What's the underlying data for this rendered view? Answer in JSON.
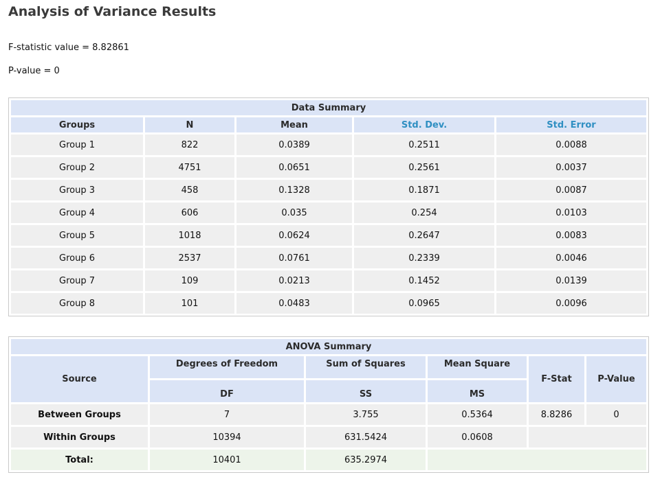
{
  "page": {
    "title": "Analysis of Variance Results",
    "f_statistic_line": "F-statistic value = 8.82861",
    "p_value_line": "P-value = 0"
  },
  "data_summary": {
    "caption": "Data Summary",
    "headers": [
      "Groups",
      "N",
      "Mean",
      "Std. Dev.",
      "Std. Error"
    ],
    "rows": [
      [
        "Group 1",
        "822",
        "0.0389",
        "0.2511",
        "0.0088"
      ],
      [
        "Group 2",
        "4751",
        "0.0651",
        "0.2561",
        "0.0037"
      ],
      [
        "Group 3",
        "458",
        "0.1328",
        "0.1871",
        "0.0087"
      ],
      [
        "Group 4",
        "606",
        "0.035",
        "0.254",
        "0.0103"
      ],
      [
        "Group 5",
        "1018",
        "0.0624",
        "0.2647",
        "0.0083"
      ],
      [
        "Group 6",
        "2537",
        "0.0761",
        "0.2339",
        "0.0046"
      ],
      [
        "Group 7",
        "109",
        "0.0213",
        "0.1452",
        "0.0139"
      ],
      [
        "Group 8",
        "101",
        "0.0483",
        "0.0965",
        "0.0096"
      ]
    ],
    "link_color": "#2f8fc2"
  },
  "anova_summary": {
    "caption": "ANOVA Summary",
    "headers": {
      "source": "Source",
      "df_title": "Degrees of Freedom",
      "df_abbr": "DF",
      "ss_title": "Sum of Squares",
      "ss_abbr": "SS",
      "ms_title": "Mean Square",
      "ms_abbr": "MS",
      "fstat": "F-Stat",
      "pvalue": "P-Value"
    },
    "between": {
      "label": "Between Groups",
      "df": "7",
      "ss": "3.755",
      "ms": "0.5364",
      "f": "8.8286",
      "p": "0"
    },
    "within": {
      "label": "Within Groups",
      "df": "10394",
      "ss": "631.5424",
      "ms": "0.0608"
    },
    "total": {
      "label": "Total:",
      "df": "10401",
      "ss": "635.2974"
    }
  }
}
